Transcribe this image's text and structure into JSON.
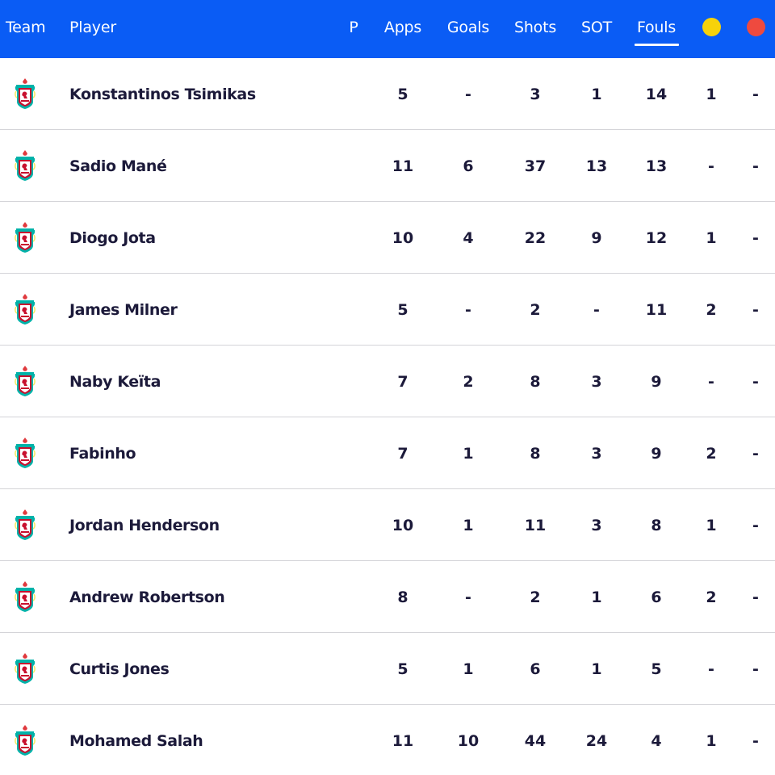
{
  "header": {
    "columns": {
      "team": "Team",
      "player": "Player",
      "position": "P",
      "apps": "Apps",
      "goals": "Goals",
      "shots": "Shots",
      "sot": "SOT",
      "fouls": "Fouls",
      "yellow_icon": "yellow-card-icon",
      "red_icon": "red-card-icon"
    },
    "active_column": "Fouls"
  },
  "colors": {
    "header_bg": "#0a5cf5",
    "yellow_card": "#f7d20a",
    "red_card": "#ee4a3f",
    "text": "#1c1a3a",
    "divider": "#d4d4d8"
  },
  "team_icon": "liverpool-crest-icon",
  "rows": [
    {
      "player": "Konstantinos Tsimikas",
      "apps": "5",
      "goals": "-",
      "shots": "3",
      "sot": "1",
      "fouls": "14",
      "yellow": "1",
      "red": "-"
    },
    {
      "player": "Sadio Mané",
      "apps": "11",
      "goals": "6",
      "shots": "37",
      "sot": "13",
      "fouls": "13",
      "yellow": "-",
      "red": "-"
    },
    {
      "player": "Diogo Jota",
      "apps": "10",
      "goals": "4",
      "shots": "22",
      "sot": "9",
      "fouls": "12",
      "yellow": "1",
      "red": "-"
    },
    {
      "player": "James Milner",
      "apps": "5",
      "goals": "-",
      "shots": "2",
      "sot": "-",
      "fouls": "11",
      "yellow": "2",
      "red": "-"
    },
    {
      "player": "Naby Keïta",
      "apps": "7",
      "goals": "2",
      "shots": "8",
      "sot": "3",
      "fouls": "9",
      "yellow": "-",
      "red": "-"
    },
    {
      "player": "Fabinho",
      "apps": "7",
      "goals": "1",
      "shots": "8",
      "sot": "3",
      "fouls": "9",
      "yellow": "2",
      "red": "-"
    },
    {
      "player": "Jordan Henderson",
      "apps": "10",
      "goals": "1",
      "shots": "11",
      "sot": "3",
      "fouls": "8",
      "yellow": "1",
      "red": "-"
    },
    {
      "player": "Andrew Robertson",
      "apps": "8",
      "goals": "-",
      "shots": "2",
      "sot": "1",
      "fouls": "6",
      "yellow": "2",
      "red": "-"
    },
    {
      "player": "Curtis Jones",
      "apps": "5",
      "goals": "1",
      "shots": "6",
      "sot": "1",
      "fouls": "5",
      "yellow": "-",
      "red": "-"
    },
    {
      "player": "Mohamed Salah",
      "apps": "11",
      "goals": "10",
      "shots": "44",
      "sot": "24",
      "fouls": "4",
      "yellow": "1",
      "red": "-"
    }
  ]
}
